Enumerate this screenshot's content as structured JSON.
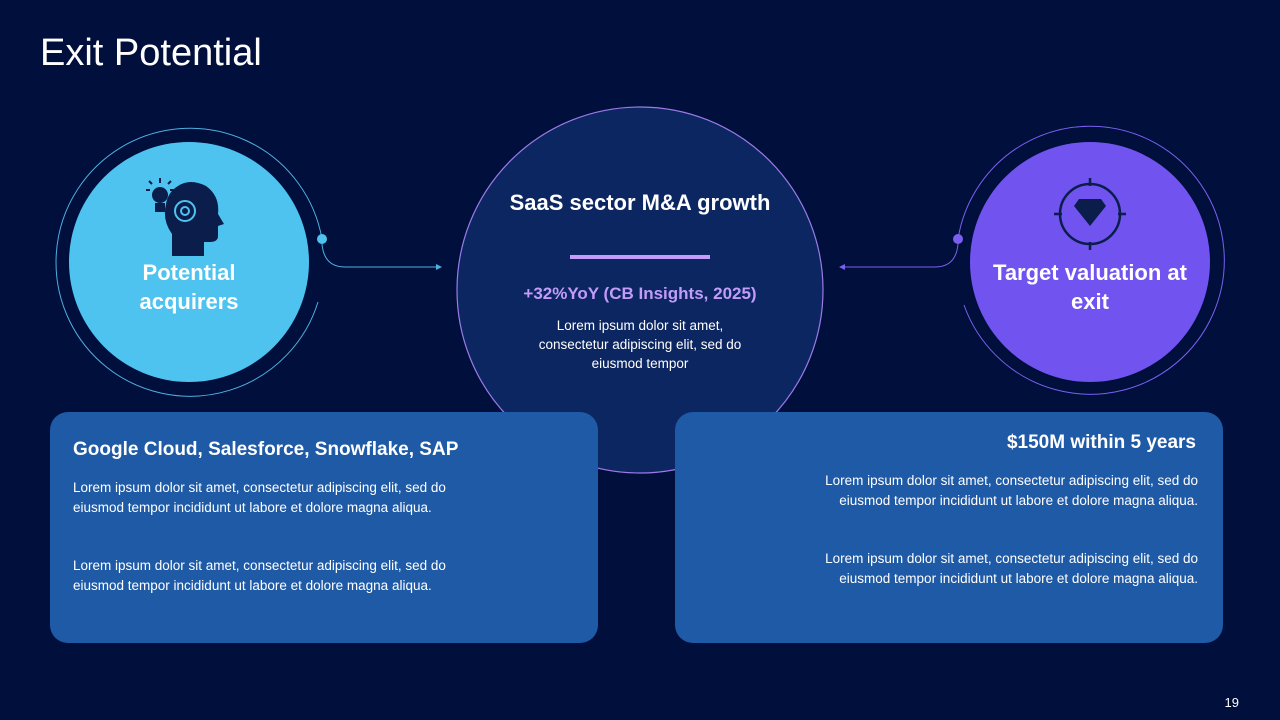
{
  "title": "Exit Potential",
  "left": {
    "label": "Potential acquirers",
    "icon": "head-lightbulb-gear-icon",
    "color": "#4fc3f0"
  },
  "center": {
    "title": "SaaS sector M&A growth",
    "stat": "+32%YoY (CB Insights, 2025)",
    "body": "Lorem ipsum dolor sit amet, consectetur adipiscing elit, sed do eiusmod tempor",
    "accent": "#c19cf8"
  },
  "right": {
    "label": "Target valuation at exit",
    "icon": "diamond-target-icon",
    "color": "#7153ef"
  },
  "left_box": {
    "heading": "Google Cloud, Salesforce, Snowflake, SAP",
    "paragraphs": [
      "Lorem ipsum dolor sit amet, consectetur adipiscing elit, sed do eiusmod tempor incididunt ut labore et dolore magna aliqua.",
      "Lorem ipsum dolor sit amet, consectetur adipiscing elit, sed do eiusmod tempor incididunt ut labore et dolore magna aliqua."
    ]
  },
  "right_box": {
    "heading": "$150M within 5 years",
    "paragraphs": [
      "Lorem ipsum dolor sit amet, consectetur adipiscing elit, sed do eiusmod tempor incididunt ut labore et dolore magna aliqua.",
      "Lorem ipsum dolor sit amet, consectetur adipiscing elit, sed do eiusmod tempor incididunt ut labore et dolore magna aliqua."
    ]
  },
  "page_number": "19"
}
